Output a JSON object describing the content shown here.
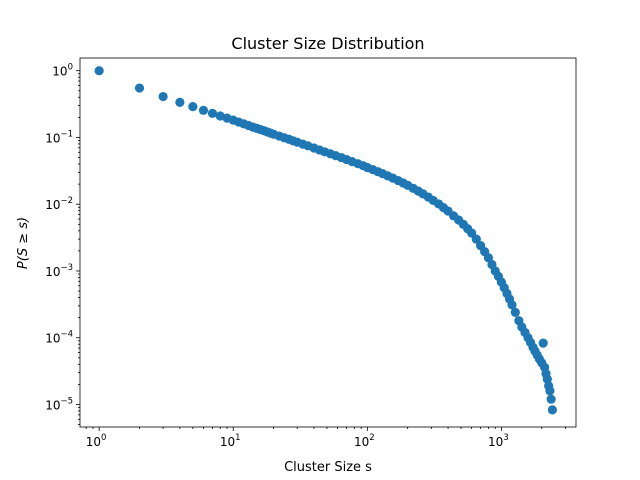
{
  "chart_data": {
    "type": "scatter",
    "title": "Cluster Size Distribution",
    "xlabel": "Cluster Size s",
    "ylabel": "P(S ≥ s)",
    "xscale": "log",
    "yscale": "log",
    "xlim": [
      0.72,
      3600
    ],
    "ylim": [
      4.6e-06,
      1.55
    ],
    "grid": false,
    "legend": "none",
    "marker_color": "#1f77b4",
    "x_ticks": [
      {
        "value": 1,
        "base": "10",
        "exp": "0"
      },
      {
        "value": 10,
        "base": "10",
        "exp": "1"
      },
      {
        "value": 100,
        "base": "10",
        "exp": "2"
      },
      {
        "value": 1000,
        "base": "10",
        "exp": "3"
      }
    ],
    "y_ticks": [
      {
        "value": 1e-05,
        "base": "10",
        "exp": "−5"
      },
      {
        "value": 0.0001,
        "base": "10",
        "exp": "−4"
      },
      {
        "value": 0.001,
        "base": "10",
        "exp": "−3"
      },
      {
        "value": 0.01,
        "base": "10",
        "exp": "−2"
      },
      {
        "value": 0.1,
        "base": "10",
        "exp": "−1"
      },
      {
        "value": 1,
        "base": "10",
        "exp": "0"
      }
    ],
    "points": [
      [
        1,
        1.0
      ],
      [
        2,
        0.55
      ],
      [
        3,
        0.41
      ],
      [
        4,
        0.335
      ],
      [
        5,
        0.29
      ],
      [
        6,
        0.255
      ],
      [
        7,
        0.23
      ],
      [
        8,
        0.21
      ],
      [
        9,
        0.195
      ],
      [
        10,
        0.182
      ],
      [
        11,
        0.17
      ],
      [
        12,
        0.16
      ],
      [
        13,
        0.151
      ],
      [
        14,
        0.143
      ],
      [
        15,
        0.137
      ],
      [
        16,
        0.131
      ],
      [
        17,
        0.126
      ],
      [
        18,
        0.121
      ],
      [
        19,
        0.116
      ],
      [
        20,
        0.112
      ],
      [
        22,
        0.105
      ],
      [
        24,
        0.099
      ],
      [
        26,
        0.094
      ],
      [
        28,
        0.089
      ],
      [
        30,
        0.085
      ],
      [
        33,
        0.0795
      ],
      [
        36,
        0.075
      ],
      [
        40,
        0.0695
      ],
      [
        44,
        0.065
      ],
      [
        48,
        0.061
      ],
      [
        53,
        0.057
      ],
      [
        58,
        0.0535
      ],
      [
        64,
        0.05
      ],
      [
        70,
        0.0467
      ],
      [
        77,
        0.0435
      ],
      [
        85,
        0.0405
      ],
      [
        93,
        0.0378
      ],
      [
        100,
        0.0355
      ],
      [
        110,
        0.033
      ],
      [
        120,
        0.0307
      ],
      [
        130,
        0.0287
      ],
      [
        142,
        0.0266
      ],
      [
        155,
        0.0246
      ],
      [
        170,
        0.0226
      ],
      [
        185,
        0.0208
      ],
      [
        200,
        0.0192
      ],
      [
        220,
        0.0173
      ],
      [
        240,
        0.0157
      ],
      [
        260,
        0.0143
      ],
      [
        285,
        0.0128
      ],
      [
        310,
        0.0114
      ],
      [
        340,
        0.0101
      ],
      [
        370,
        0.0089
      ],
      [
        400,
        0.0079
      ],
      [
        440,
        0.0067
      ],
      [
        480,
        0.0058
      ],
      [
        520,
        0.005
      ],
      [
        560,
        0.0043
      ],
      [
        600,
        0.0037
      ],
      [
        650,
        0.003
      ],
      [
        700,
        0.0024
      ],
      [
        750,
        0.00195
      ],
      [
        800,
        0.00158
      ],
      [
        850,
        0.00125
      ],
      [
        900,
        0.001
      ],
      [
        950,
        0.00083
      ],
      [
        1000,
        0.00068
      ],
      [
        1050,
        0.00056
      ],
      [
        1100,
        0.00046
      ],
      [
        1150,
        0.00038
      ],
      [
        1200,
        0.00031
      ],
      [
        1270,
        0.00024
      ],
      [
        1350,
        0.00018
      ],
      [
        1420,
        0.000145
      ],
      [
        1500,
        0.00012
      ],
      [
        1580,
        0.0001
      ],
      [
        1650,
        8.5e-05
      ],
      [
        1720,
        7.2e-05
      ],
      [
        1780,
        6.3e-05
      ],
      [
        1850,
        5.5e-05
      ],
      [
        1920,
        4.8e-05
      ],
      [
        2000,
        4.2e-05
      ],
      [
        2050,
        8.3e-05
      ],
      [
        2100,
        3.6e-05
      ],
      [
        2150,
        2.9e-05
      ],
      [
        2200,
        2.4e-05
      ],
      [
        2250,
        1.9e-05
      ],
      [
        2300,
        1.6e-05
      ],
      [
        2350,
        1.2e-05
      ],
      [
        2400,
        8.3e-06
      ]
    ]
  }
}
